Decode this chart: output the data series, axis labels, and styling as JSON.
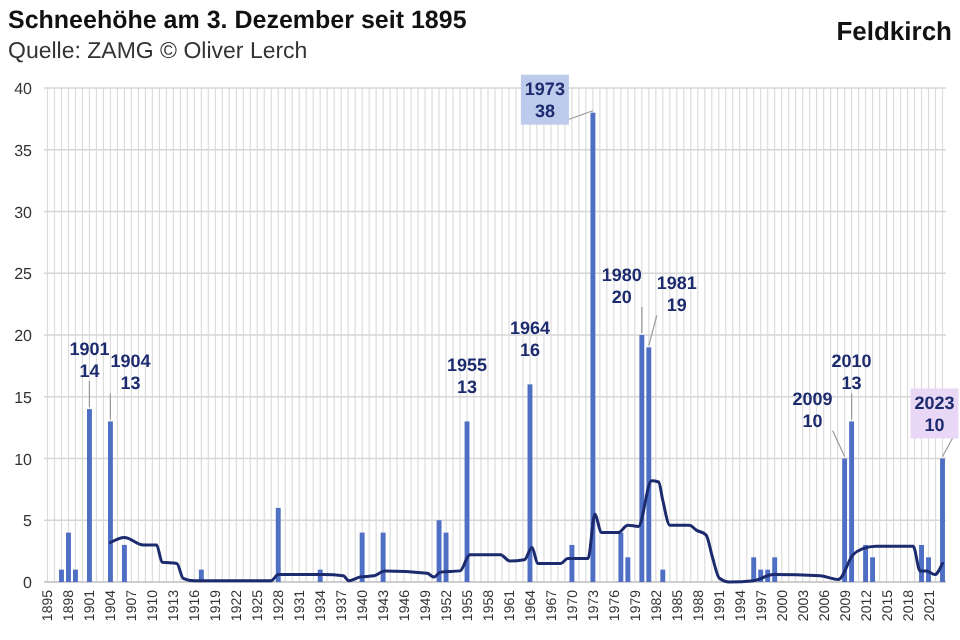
{
  "chart_data": {
    "type": "bar",
    "title": "Schneehöhe am 3. Dezember seit 1895",
    "subtitle": "Quelle: ZAMG © Oliver Lerch",
    "annotations": [
      "Feldkirch",
      {
        "text": "1901\n14",
        "x": 1901,
        "y": 14
      },
      {
        "text": "1904\n13",
        "x": 1904,
        "y": 13
      },
      {
        "text": "1955\n13",
        "x": 1955,
        "y": 13
      },
      {
        "text": "1964\n16",
        "x": 1964,
        "y": 16
      },
      {
        "text": "1973\n38",
        "x": 1973,
        "y": 38
      },
      {
        "text": "1980\n20",
        "x": 1980,
        "y": 20
      },
      {
        "text": "1981\n19",
        "x": 1981,
        "y": 19
      },
      {
        "text": "2009\n10",
        "x": 2009,
        "y": 10
      },
      {
        "text": "2010\n13",
        "x": 2010,
        "y": 13
      },
      {
        "text": "2023\n10",
        "x": 2023,
        "y": 10
      }
    ],
    "x": [
      1895,
      1896,
      1897,
      1898,
      1899,
      1900,
      1901,
      1902,
      1903,
      1904,
      1905,
      1906,
      1907,
      1908,
      1909,
      1910,
      1911,
      1912,
      1913,
      1914,
      1915,
      1916,
      1917,
      1918,
      1919,
      1920,
      1921,
      1922,
      1923,
      1924,
      1925,
      1926,
      1927,
      1928,
      1929,
      1930,
      1931,
      1932,
      1933,
      1934,
      1935,
      1936,
      1937,
      1938,
      1939,
      1940,
      1941,
      1942,
      1943,
      1944,
      1945,
      1946,
      1947,
      1948,
      1949,
      1950,
      1951,
      1952,
      1953,
      1954,
      1955,
      1956,
      1957,
      1958,
      1959,
      1960,
      1961,
      1962,
      1963,
      1964,
      1965,
      1966,
      1967,
      1968,
      1969,
      1970,
      1971,
      1972,
      1973,
      1974,
      1975,
      1976,
      1977,
      1978,
      1979,
      1980,
      1981,
      1982,
      1983,
      1984,
      1985,
      1986,
      1987,
      1988,
      1989,
      1990,
      1991,
      1992,
      1993,
      1994,
      1995,
      1996,
      1997,
      1998,
      1999,
      2000,
      2001,
      2002,
      2003,
      2004,
      2005,
      2006,
      2007,
      2008,
      2009,
      2010,
      2011,
      2012,
      2013,
      2014,
      2015,
      2016,
      2017,
      2018,
      2019,
      2020,
      2021,
      2022,
      2023
    ],
    "series": [
      {
        "color": "#4f6fc4",
        "values": [
          0,
          0,
          1,
          4,
          1,
          0,
          14,
          0,
          0,
          13,
          0,
          3,
          0,
          0,
          0,
          0,
          0,
          0,
          0,
          0,
          0,
          0,
          1,
          0,
          0,
          0,
          0,
          0,
          0,
          0,
          0,
          0,
          0,
          6,
          0,
          0,
          0,
          0,
          0,
          1,
          0,
          0,
          0,
          0,
          0,
          4,
          0,
          0,
          4,
          0,
          0,
          0,
          0,
          0,
          0,
          0,
          5,
          4,
          0,
          0,
          13,
          0,
          0,
          0,
          0,
          0,
          0,
          0,
          0,
          16,
          0,
          0,
          0,
          0,
          0,
          3,
          0,
          0,
          38,
          0,
          0,
          0,
          4,
          2,
          0,
          20,
          19,
          0,
          1,
          0,
          0,
          0,
          0,
          0,
          0,
          0,
          0,
          0,
          0,
          0,
          0,
          2,
          1,
          1,
          2,
          0,
          0,
          0,
          0,
          0,
          0,
          0,
          0,
          0,
          10,
          13,
          0,
          3,
          2,
          0,
          0,
          0,
          0,
          0,
          0,
          3,
          2,
          0,
          10
        ]
      },
      {
        "type": "line",
        "color": "#1c2a6e",
        "x": [
          1904,
          1906,
          1908.7,
          1910.6,
          1911.4,
          1913.5,
          1914.4,
          1916,
          1927,
          1928,
          1934.5,
          1937.3,
          1938.1,
          1939.7,
          1941.7,
          1943.2,
          1949.3,
          1950.3,
          1951.2,
          1954,
          1955.4,
          1959.8,
          1961.1,
          1963.2,
          1964.3,
          1965.1,
          1968.4,
          1969.4,
          1972.3,
          1973.3,
          1974.2,
          1976.6,
          1978,
          1979.5,
          1981.4,
          1982.4,
          1983,
          1984,
          1986.8,
          1987.8,
          1989.2,
          1990.1,
          1991.1,
          1992.5,
          1996,
          1998.8,
          2005.5,
          2008.1,
          2010.2,
          2011.6,
          2013.5,
          2018.8,
          2019.8,
          2020.7,
          2021.9,
          2023
        ],
        "values": [
          3.2,
          3.6,
          3.0,
          3.0,
          1.6,
          1.5,
          0.3,
          0.1,
          0.1,
          0.6,
          0.6,
          0.5,
          0.1,
          0.4,
          0.5,
          0.9,
          0.7,
          0.4,
          0.8,
          0.9,
          2.2,
          2.2,
          1.7,
          1.8,
          2.8,
          1.5,
          1.5,
          1.9,
          1.9,
          5.5,
          4.0,
          4.0,
          4.6,
          4.5,
          8.2,
          8.1,
          6.6,
          4.6,
          4.6,
          4.2,
          3.8,
          2.0,
          0.3,
          0,
          0.1,
          0.6,
          0.5,
          0.2,
          2.2,
          2.7,
          2.9,
          2.9,
          0.9,
          0.9,
          0.6,
          1.5
        ]
      }
    ],
    "xlim": [
      1894.5,
      2023.5
    ],
    "ylim": [
      0,
      40
    ],
    "yticks": [
      0,
      5,
      10,
      15,
      20,
      25,
      30,
      35,
      40
    ],
    "xticks": [
      1895,
      {
        "value": 1896,
        "label": null
      },
      {
        "value": 1897,
        "label": null
      },
      1898,
      {
        "value": 1899,
        "label": null
      },
      {
        "value": 1900,
        "label": null
      },
      1901,
      {
        "value": 1902,
        "label": null
      },
      {
        "value": 1903,
        "label": null
      },
      1904,
      {
        "value": 1905,
        "label": null
      },
      {
        "value": 1906,
        "label": null
      },
      1907,
      {
        "value": 1908,
        "label": null
      },
      {
        "value": 1909,
        "label": null
      },
      1910,
      {
        "value": 1911,
        "label": null
      },
      {
        "value": 1912,
        "label": null
      },
      1913,
      {
        "value": 1914,
        "label": null
      },
      {
        "value": 1915,
        "label": null
      },
      1916,
      {
        "value": 1917,
        "label": null
      },
      {
        "value": 1918,
        "label": null
      },
      1919,
      {
        "value": 1920,
        "label": null
      },
      {
        "value": 1921,
        "label": null
      },
      1922,
      {
        "value": 1923,
        "label": null
      },
      {
        "value": 1924,
        "label": null
      },
      1925,
      {
        "value": 1926,
        "label": null
      },
      {
        "value": 1927,
        "label": null
      },
      1928,
      {
        "value": 1929,
        "label": null
      },
      {
        "value": 1930,
        "label": null
      },
      1931,
      {
        "value": 1932,
        "label": null
      },
      {
        "value": 1933,
        "label": null
      },
      1934,
      {
        "value": 1935,
        "label": null
      },
      {
        "value": 1936,
        "label": null
      },
      1937,
      {
        "value": 1938,
        "label": null
      },
      {
        "value": 1939,
        "label": null
      },
      1940,
      {
        "value": 1941,
        "label": null
      },
      {
        "value": 1942,
        "label": null
      },
      1943,
      {
        "value": 1944,
        "label": null
      },
      {
        "value": 1945,
        "label": null
      },
      1946,
      {
        "value": 1947,
        "label": null
      },
      {
        "value": 1948,
        "label": null
      },
      1949,
      {
        "value": 1950,
        "label": null
      },
      {
        "value": 1951,
        "label": null
      },
      1952,
      {
        "value": 1953,
        "label": null
      },
      {
        "value": 1954,
        "label": null
      },
      1955,
      {
        "value": 1956,
        "label": null
      },
      {
        "value": 1957,
        "label": null
      },
      1958,
      {
        "value": 1959,
        "label": null
      },
      {
        "value": 1960,
        "label": null
      },
      1961,
      {
        "value": 1962,
        "label": null
      },
      {
        "value": 1963,
        "label": null
      },
      1964,
      {
        "value": 1965,
        "label": null
      },
      {
        "value": 1966,
        "label": null
      },
      1967,
      {
        "value": 1968,
        "label": null
      },
      {
        "value": 1969,
        "label": null
      },
      1970,
      {
        "value": 1971,
        "label": null
      },
      {
        "value": 1972,
        "label": null
      },
      1973,
      {
        "value": 1974,
        "label": null
      },
      {
        "value": 1975,
        "label": null
      },
      1976,
      {
        "value": 1977,
        "label": null
      },
      {
        "value": 1978,
        "label": null
      },
      1979,
      {
        "value": 1980,
        "label": null
      },
      {
        "value": 1981,
        "label": null
      },
      1982,
      {
        "value": 1983,
        "label": null
      },
      {
        "value": 1984,
        "label": null
      },
      1985,
      {
        "value": 1986,
        "label": null
      },
      {
        "value": 1987,
        "label": null
      },
      1988,
      {
        "value": 1989,
        "label": null
      },
      {
        "value": 1990,
        "label": null
      },
      1991,
      {
        "value": 1992,
        "label": null
      },
      {
        "value": 1993,
        "label": null
      },
      1994,
      {
        "value": 1995,
        "label": null
      },
      {
        "value": 1996,
        "label": null
      },
      1997,
      {
        "value": 1998,
        "label": null
      },
      {
        "value": 1999,
        "label": null
      },
      2000,
      {
        "value": 2001,
        "label": null
      },
      {
        "value": 2002,
        "label": null
      },
      2003,
      {
        "value": 2004,
        "label": null
      },
      {
        "value": 2005,
        "label": null
      },
      2006,
      {
        "value": 2007,
        "label": null
      },
      {
        "value": 2008,
        "label": null
      },
      2009,
      {
        "value": 2010,
        "label": null
      },
      {
        "value": 2011,
        "label": null
      },
      2012,
      {
        "value": 2013,
        "label": null
      },
      {
        "value": 2014,
        "label": null
      },
      2015,
      {
        "value": 2016,
        "label": null
      },
      {
        "value": 2017,
        "label": null
      },
      2018,
      {
        "value": 2019,
        "label": null
      },
      {
        "value": 2020,
        "label": null
      },
      2021,
      {
        "value": 2022,
        "label": null
      },
      {
        "value": 2023,
        "label": null
      }
    ],
    "grid": true
  }
}
